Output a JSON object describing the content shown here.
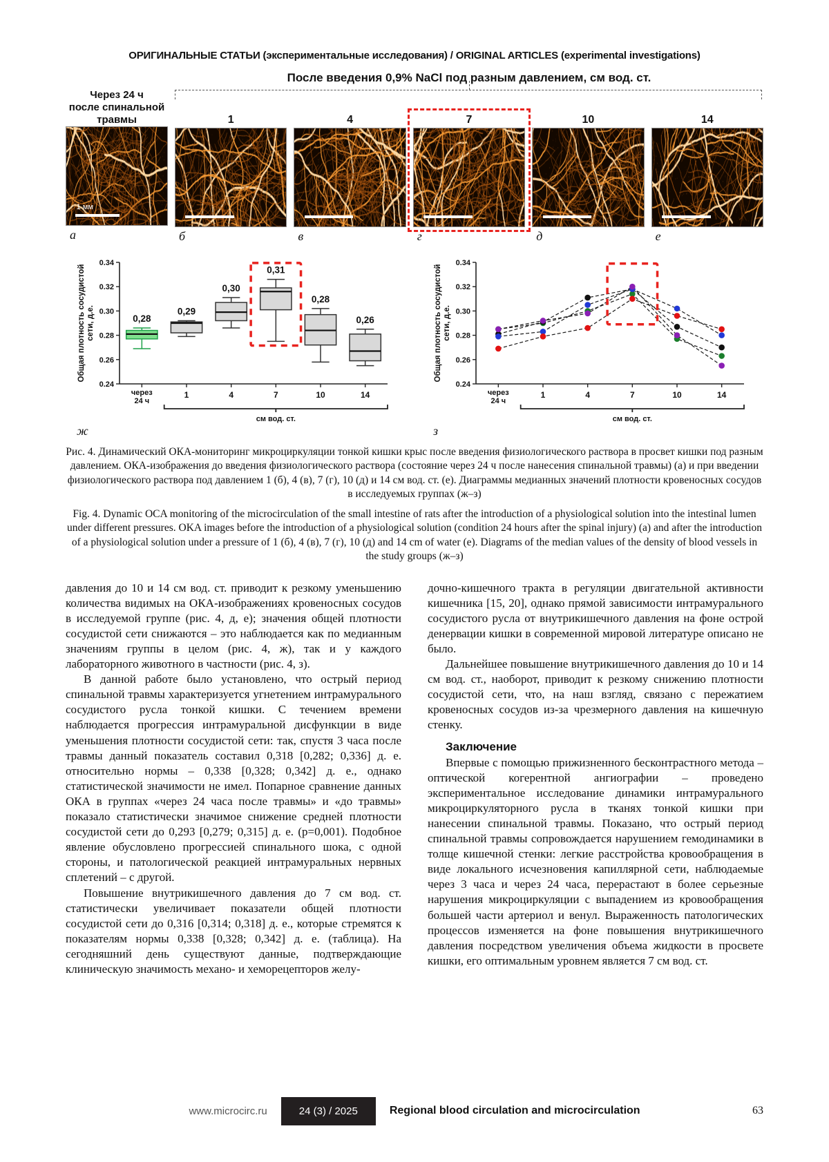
{
  "page": {
    "running_head": "ОРИГИНАЛЬНЫЕ СТАТЬИ (экспериментальные исследования) / ORIGINAL ARTICLES (experimental investigations)",
    "footer": {
      "url": "www.microcirc.ru",
      "issue": "24 (3) / 2025",
      "journal": "Regional blood circulation and microcirculation",
      "page_number": "63"
    }
  },
  "figure": {
    "pressure_title": "После введения 0,9% NaCl под разным давлением, см вод. ст.",
    "baseline_label_lines": [
      "Через 24 ч",
      "после спинальной",
      "травмы"
    ],
    "pressures": [
      "1",
      "4",
      "7",
      "10",
      "14"
    ],
    "highlighted_pressure": "7",
    "scale_bar_label": "1 мм",
    "panel_letters": [
      "а",
      "б",
      "в",
      "г",
      "д",
      "е"
    ],
    "image_densities": [
      16,
      18,
      22,
      26,
      16,
      12
    ],
    "caption_ru": "Рис. 4. Динамический ОКА-мониторинг микроциркуляции тонкой кишки крыс после введения физиологического раствора в просвет кишки под разным давлением. ОКА-изображения до введения физиологического раствора (состояние через 24 ч после нанесения спинальной травмы) (а) и при введении физиологического раствора под давлением 1 (б), 4 (в), 7 (г), 10 (д) и 14 см вод. ст. (е). Диаграммы медианных значений плотности кровеносных сосудов в исследуемых группах (ж–з)",
    "caption_en": "Fig. 4. Dynamic OCA monitoring of the microcirculation of the small intestine of rats after the introduction of a physiological solution into the intestinal lumen under different pressures. OKA images before the introduction of a physiological solution (condition 24 hours after the spinal injury) (а) and after the introduction of a physiological solution under a pressure of 1 (б), 4 (в), 7 (г), 10 (д) and 14 cm of water (е). Diagrams of the median values of the density of blood vessels in the study groups (ж–з)"
  },
  "chart_data": [
    {
      "type": "box",
      "panel_letter": "ж",
      "categories": [
        "через 24 ч",
        "1",
        "4",
        "7",
        "10",
        "14"
      ],
      "x_first_lines": [
        "через",
        "24 ч"
      ],
      "xlabel": "см вод. ст.",
      "ylabel_lines": [
        "Общая плотность сосудистой",
        "сети, д.е."
      ],
      "ylim": [
        0.24,
        0.34
      ],
      "yticks": [
        0.24,
        0.26,
        0.28,
        0.3,
        0.32,
        0.34
      ],
      "grid": false,
      "boxes": [
        {
          "label": "0,28",
          "whisker_low": 0.269,
          "q1": 0.277,
          "median": 0.281,
          "q3": 0.284,
          "whisker_high": 0.286,
          "fill": "#7fe08d",
          "stroke": "#1fa24a"
        },
        {
          "label": "0,29",
          "whisker_low": 0.279,
          "q1": 0.282,
          "median": 0.29,
          "q3": 0.291,
          "whisker_high": 0.292,
          "fill": "#d9d9d9",
          "stroke": "#333333"
        },
        {
          "label": "0,30",
          "whisker_low": 0.286,
          "q1": 0.292,
          "median": 0.299,
          "q3": 0.307,
          "whisker_high": 0.311,
          "fill": "#d9d9d9",
          "stroke": "#333333"
        },
        {
          "label": "0,31",
          "whisker_low": 0.275,
          "q1": 0.301,
          "median": 0.316,
          "q3": 0.319,
          "whisker_high": 0.326,
          "fill": "#d9d9d9",
          "stroke": "#333333"
        },
        {
          "label": "0,28",
          "whisker_low": 0.258,
          "q1": 0.272,
          "median": 0.284,
          "q3": 0.297,
          "whisker_high": 0.302,
          "fill": "#d9d9d9",
          "stroke": "#333333"
        },
        {
          "label": "0,26",
          "whisker_low": 0.255,
          "q1": 0.259,
          "median": 0.267,
          "q3": 0.281,
          "whisker_high": 0.285,
          "fill": "#d9d9d9",
          "stroke": "#333333"
        }
      ],
      "highlight_box": {
        "x_index": 3,
        "y_top": 0.3395,
        "y_bottom": 0.2715,
        "color": "#e8231f"
      }
    },
    {
      "type": "line",
      "panel_letter": "з",
      "categories": [
        "через 24 ч",
        "1",
        "4",
        "7",
        "10",
        "14"
      ],
      "x_first_lines": [
        "через",
        "24 ч"
      ],
      "xlabel": "см вод. ст.",
      "ylabel_lines": [
        "Общая плотность сосудистой",
        "сети, д.е."
      ],
      "ylim": [
        0.24,
        0.34
      ],
      "yticks": [
        0.24,
        0.26,
        0.28,
        0.3,
        0.32,
        0.34
      ],
      "grid": false,
      "series": [
        {
          "name": "rat-green",
          "color": "#1b7e2c",
          "values": [
            0.285,
            0.29,
            0.3,
            0.314,
            0.277,
            0.263
          ]
        },
        {
          "name": "rat-black",
          "color": "#111111",
          "values": [
            0.281,
            0.291,
            0.311,
            0.318,
            0.287,
            0.27
          ]
        },
        {
          "name": "rat-blue",
          "color": "#2139d6",
          "values": [
            0.279,
            0.283,
            0.305,
            0.318,
            0.302,
            0.28
          ]
        },
        {
          "name": "rat-red",
          "color": "#e21212",
          "values": [
            0.269,
            0.279,
            0.286,
            0.31,
            0.296,
            0.285
          ]
        },
        {
          "name": "rat-purple",
          "color": "#8a1fb4",
          "values": [
            0.285,
            0.292,
            0.298,
            0.32,
            0.28,
            0.255
          ]
        }
      ],
      "highlight_box": {
        "x_index": 3,
        "y_top": 0.339,
        "y_bottom": 0.289,
        "color": "#e8231f"
      }
    }
  ],
  "body": {
    "left_column": [
      {
        "indent": false,
        "text": "давления до 10 и 14 см вод. ст. приводит к резкому уменьшению количества видимых на ОКА-изображениях кровеносных сосудов в исследуемой группе (рис. 4, д, е); значения общей плотности сосудистой сети снижаются – это наблюдается как по медианным значениям группы в целом (рис. 4, ж), так и у каждого лабораторного животного в частности (рис. 4, з)."
      },
      {
        "indent": true,
        "text": "В данной работе было установлено, что острый период спинальной травмы характеризуется угнетением интрамурального сосудистого русла тонкой кишки. С течением времени наблюдается прогрессия интрамуральной дисфункции в виде уменьшения плотности сосудистой сети: так, спустя 3 часа после травмы данный показатель составил 0,318 [0,282; 0,336] д. е. относительно нормы – 0,338 [0,328; 0,342] д. е., однако статистической значимости не имел. Попарное сравнение данных ОКА в группах «через 24 часа после травмы» и «до травмы» показало статистически значимое снижение средней плотности сосудистой сети до 0,293 [0,279; 0,315] д. е. (p=0,001). Подобное явление обусловлено прогрессией спинального шока, с одной стороны, и патологической реакцией интрамуральных нервных сплетений – с другой."
      },
      {
        "indent": true,
        "text": "Повышение внутрикишечного давления до 7 см вод. ст. статистически увеличивает показатели общей плотности сосудистой сети до 0,316 [0,314; 0,318] д. е., которые стремятся к показателям нормы 0,338 [0,328; 0,342] д. е. (таблица). На сегодняшний день существуют данные, подтверждающие клиническую значимость механо- и хеморецепторов желу-"
      }
    ],
    "right_column": [
      {
        "indent": false,
        "text": "дочно-кишечного тракта в регуляции двигательной активности кишечника [15, 20], однако прямой зависимости интрамурального сосудистого русла от внутрикишечного давления на фоне острой денервации кишки в современной мировой литературе описано не было."
      },
      {
        "indent": true,
        "text": "Дальнейшее повышение внутрикишечного давления до 10 и 14 см вод. ст., наоборот, приводит к резкому снижению плотности сосудистой сети, что, на наш взгляд, связано с пережатием кровеносных сосудов из-за чрезмерного давления на кишечную стенку."
      },
      {
        "heading": true,
        "text": "Заключение"
      },
      {
        "indent": true,
        "text": "Впервые с помощью прижизненного бесконтрастного метода – оптической когерентной ангиографии – проведено экспериментальное исследование динамики интрамурального микроциркуляторного русла в тканях тонкой кишки при нанесении спинальной травмы. Показано, что острый период спинальной травмы сопровождается нарушением гемодинамики в толще кишечной стенки: легкие расстройства кровообращения в виде локального исчезновения капиллярной сети, наблюдаемые через 3 часа и через 24 часа, перерастают в более серьезные нарушения микроциркуляции с выпадением из кровообращения большей части артериол и венул. Выраженность патологических процессов изменяется на фоне повышения внутрикишечного давления посредством увеличения объема жидкости в просвете кишки, его оптимальным уровнем является 7 см вод. ст."
      }
    ]
  }
}
